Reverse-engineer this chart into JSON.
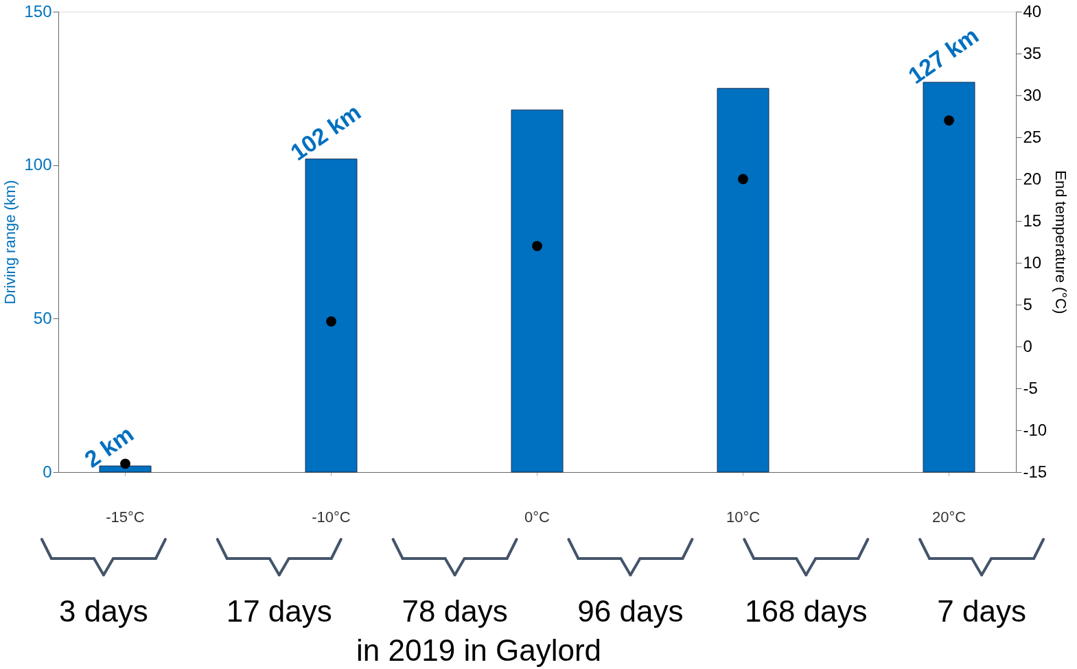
{
  "chart_data": {
    "type": "bar",
    "categories": [
      "-15°C",
      "-10°C",
      "0°C",
      "10°C",
      "20°C"
    ],
    "ylabel": "Driving range (km)",
    "y2label": "End temperature (°C)",
    "ylim": [
      0,
      150
    ],
    "yticks": [
      0,
      50,
      100,
      150
    ],
    "y2lim": [
      -15,
      40
    ],
    "y2ticks": [
      -15,
      -10,
      -5,
      0,
      5,
      10,
      15,
      20,
      25,
      30,
      35,
      40
    ],
    "series": [
      {
        "color": "#0070c0",
        "values": [
          2,
          102,
          118,
          125,
          127
        ],
        "value_labels": [
          "2 km",
          "102 km",
          null,
          null,
          "127 km"
        ]
      },
      {
        "type": "scatter",
        "axis": "y2",
        "color": "#000000",
        "values": [
          -14,
          3,
          12,
          20,
          27
        ]
      }
    ],
    "marker": "circle",
    "grid": false,
    "annotations": [
      "3 days",
      "17 days",
      "78 days",
      "96 days",
      "168 days",
      "7 days",
      "in 2019 in Gaylord"
    ]
  }
}
